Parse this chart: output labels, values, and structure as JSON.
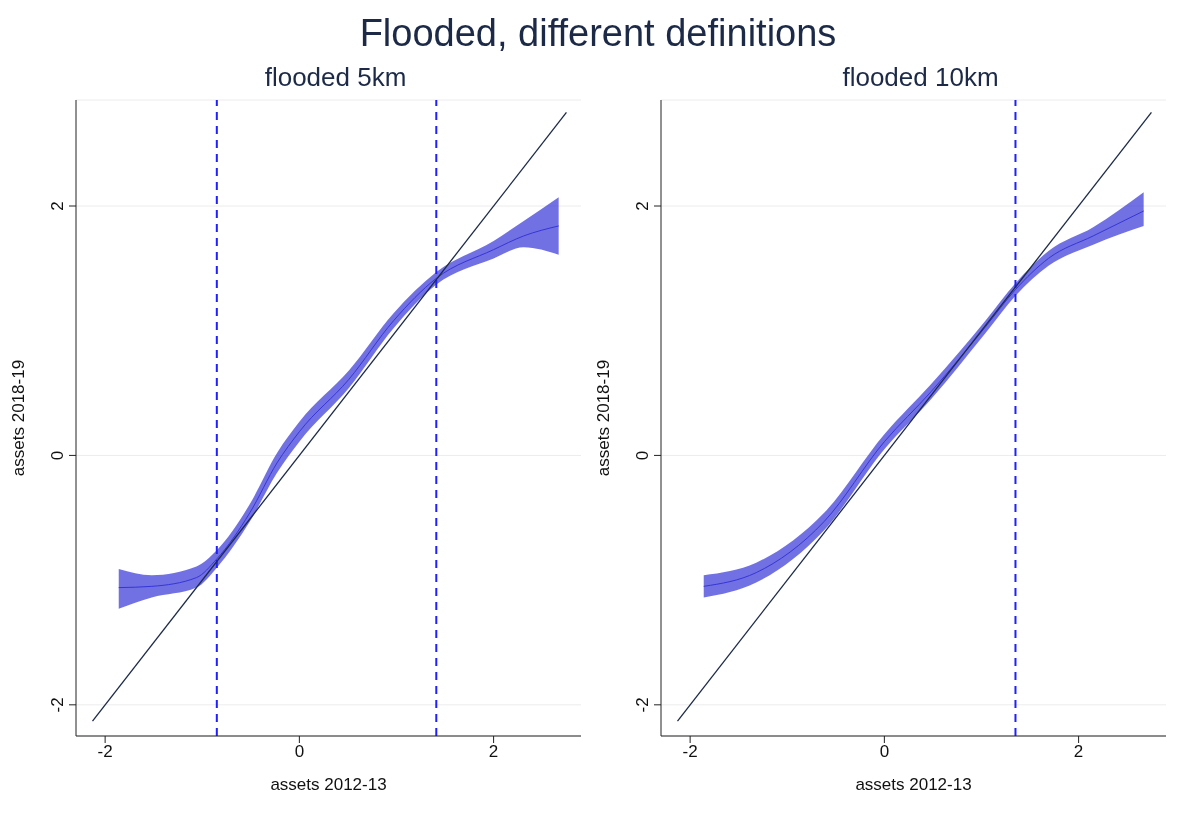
{
  "chart_data": [
    {
      "type": "line",
      "title": "Flooded, different definitions",
      "subtitle": "flooded 5km",
      "xlabel": "assets 2012-13",
      "ylabel": "assets 2018-19",
      "xlim": [
        -2.3,
        2.9
      ],
      "ylim": [
        -2.25,
        2.85
      ],
      "xticks": [
        -2,
        0,
        2
      ],
      "yticks": [
        -2,
        0,
        2
      ],
      "grid": "y",
      "marker": "none",
      "series": [
        {
          "color": "#3535d8",
          "x": [
            -1.86,
            -1.52,
            -1.06,
            -0.85,
            -0.51,
            -0.23,
            0,
            0.51,
            0.97,
            1.41,
            2.0,
            2.31,
            2.67
          ],
          "values": [
            -1.06,
            -1.05,
            -0.98,
            -0.83,
            -0.46,
            -0.06,
            0.19,
            0.61,
            1.08,
            1.42,
            1.65,
            1.76,
            1.84
          ],
          "lower": [
            -1.23,
            -1.14,
            -1.06,
            -0.9,
            -0.53,
            -0.14,
            0.11,
            0.54,
            1.02,
            1.37,
            1.58,
            1.67,
            1.61
          ],
          "upper": [
            -0.91,
            -0.96,
            -0.89,
            -0.76,
            -0.39,
            0.02,
            0.27,
            0.68,
            1.14,
            1.47,
            1.72,
            1.88,
            2.07
          ]
        },
        {
          "color": "#1c2a48",
          "x": [
            -2.13,
            2.75
          ],
          "values": [
            -2.13,
            2.75
          ]
        }
      ],
      "ref_lines": [
        {
          "axis": "x",
          "value": -0.85,
          "color": "#1f1fff",
          "line_style": "dashed"
        },
        {
          "axis": "x",
          "value": 1.41,
          "color": "#1f1fff",
          "line_style": "dashed"
        }
      ]
    },
    {
      "type": "line",
      "subtitle": "flooded 10km",
      "xlabel": "assets 2012-13",
      "ylabel": "assets 2018-19",
      "xlim": [
        -2.3,
        2.9
      ],
      "ylim": [
        -2.25,
        2.85
      ],
      "xticks": [
        -2,
        0,
        2
      ],
      "yticks": [
        -2,
        0,
        2
      ],
      "grid": "y",
      "marker": "none",
      "series": [
        {
          "color": "#3535d8",
          "x": [
            -1.86,
            -1.32,
            -0.62,
            0,
            0.48,
            1.04,
            1.35,
            1.69,
            2.15,
            2.67
          ],
          "values": [
            -1.05,
            -0.94,
            -0.53,
            0.11,
            0.51,
            1.03,
            1.33,
            1.58,
            1.76,
            1.96
          ],
          "lower": [
            -1.14,
            -1.02,
            -0.6,
            0.05,
            0.45,
            0.98,
            1.28,
            1.52,
            1.69,
            1.84
          ],
          "upper": [
            -0.96,
            -0.86,
            -0.46,
            0.17,
            0.57,
            1.08,
            1.38,
            1.64,
            1.83,
            2.11
          ]
        },
        {
          "color": "#1c2a48",
          "x": [
            -2.13,
            2.75
          ],
          "values": [
            -2.13,
            2.75
          ]
        }
      ],
      "ref_lines": [
        {
          "axis": "x",
          "value": 1.35,
          "color": "#1f1fff",
          "line_style": "dashed"
        }
      ]
    }
  ]
}
